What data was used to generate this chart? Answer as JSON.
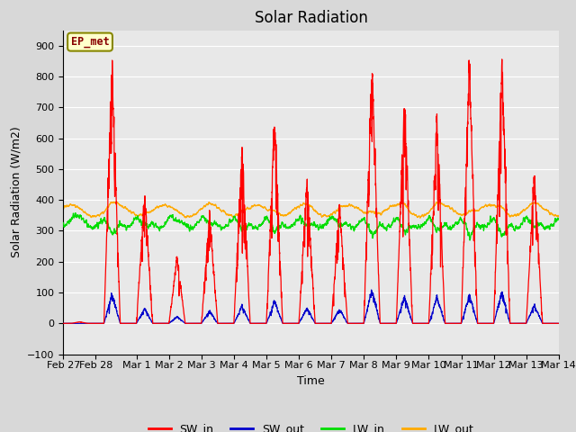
{
  "title": "Solar Radiation",
  "xlabel": "Time",
  "ylabel": "Solar Radiation (W/m2)",
  "ylim": [
    -100,
    950
  ],
  "yticks": [
    -100,
    0,
    100,
    200,
    300,
    400,
    500,
    600,
    700,
    800,
    900
  ],
  "background_color": "#e8e8e8",
  "grid_color": "#ffffff",
  "annotation_text": "EP_met",
  "annotation_bg": "#ffffcc",
  "annotation_border": "#888800",
  "annotation_text_color": "#880000",
  "fig_facecolor": "#d8d8d8",
  "colors": {
    "SW_in": "#ff0000",
    "SW_out": "#0000cc",
    "LW_in": "#00dd00",
    "LW_out": "#ffaa00"
  },
  "start_day": 57.75,
  "end_day": 73.0,
  "xtick_labels": [
    "Feb 27",
    "Feb 28",
    "Mar 1",
    "Mar 2",
    "Mar 3",
    "Mar 4",
    "Mar 5",
    "Mar 6",
    "Mar 7",
    "Mar 8",
    "Mar 9",
    "Mar 10",
    "Mar 11",
    "Mar 12",
    "Mar 13",
    "Mar 14"
  ],
  "xtick_positions": [
    57.75,
    58.75,
    60,
    61,
    62,
    63,
    64,
    65,
    66,
    67,
    68,
    69,
    70,
    71,
    72,
    73
  ]
}
